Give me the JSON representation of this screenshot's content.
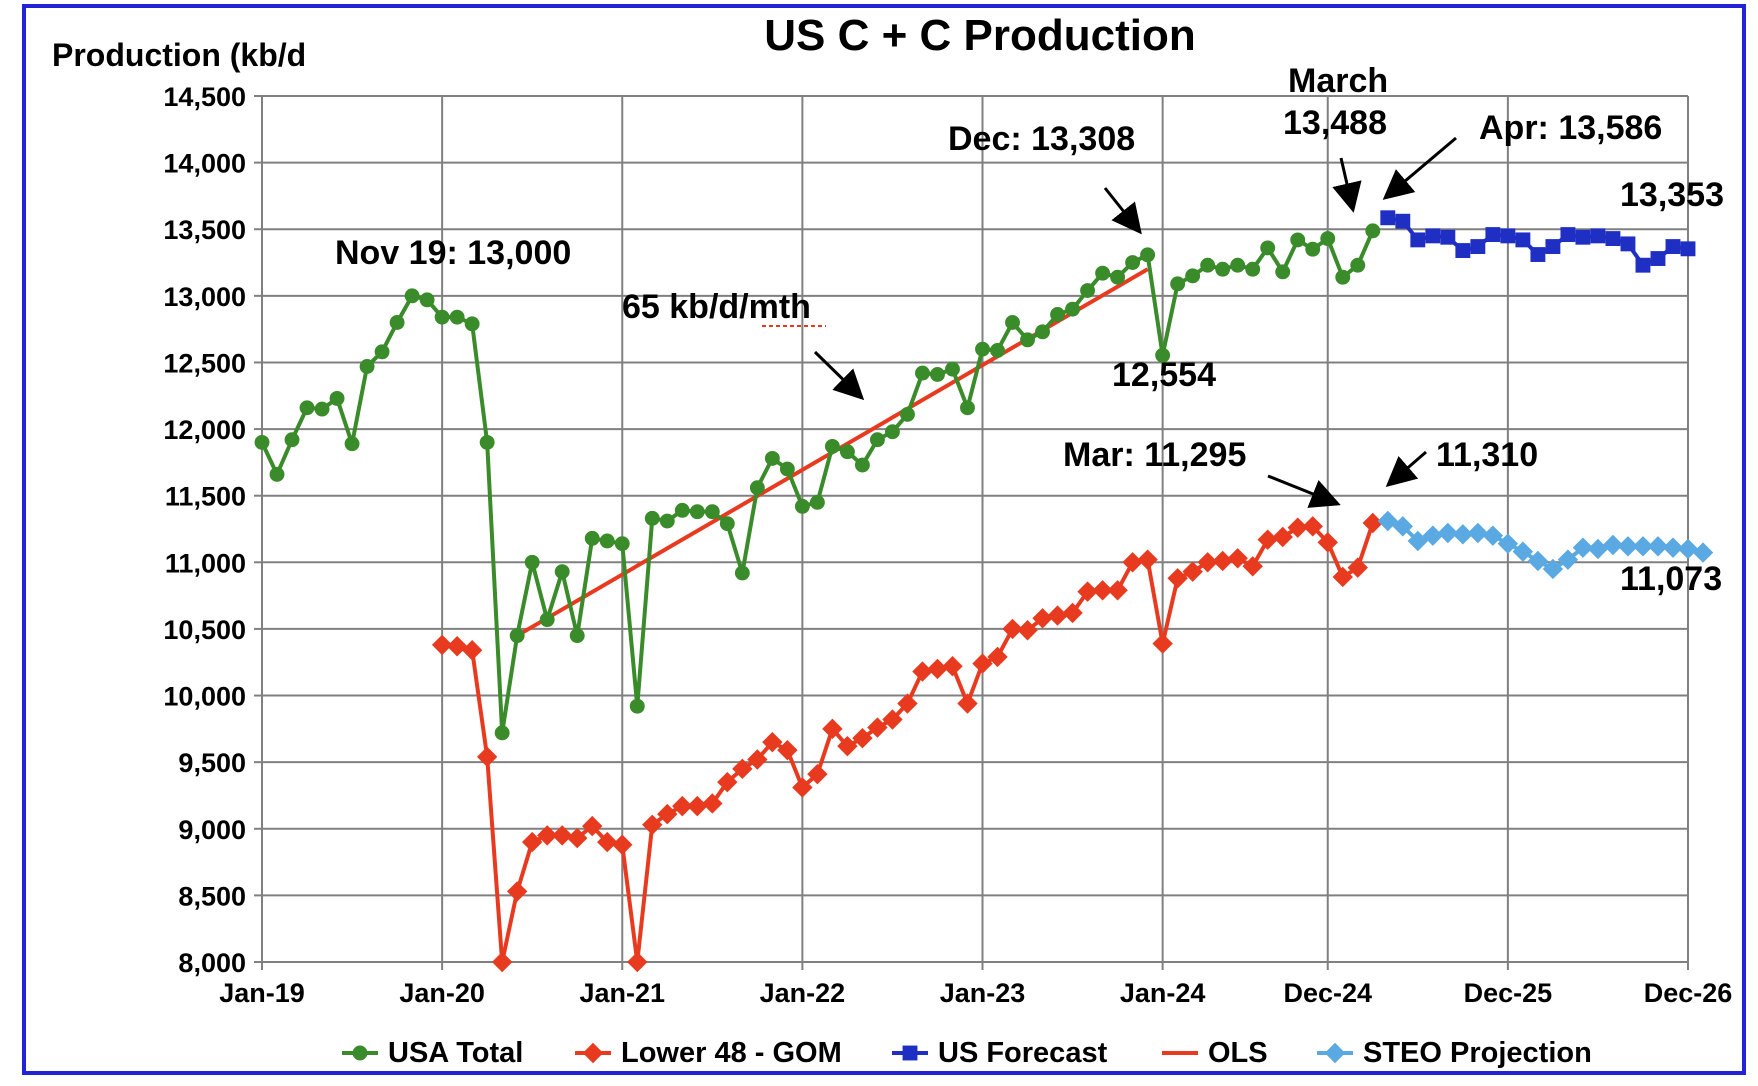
{
  "chart_data": {
    "type": "line",
    "title": "US C + C Production",
    "ylabel": "Production (kb/d",
    "ylim": [
      8000,
      14500
    ],
    "yticks": [
      8000,
      8500,
      9000,
      9500,
      10000,
      10500,
      11000,
      11500,
      12000,
      12500,
      13000,
      13500,
      14000,
      14500
    ],
    "ytick_labels": [
      "8,000",
      "8,500",
      "9,000",
      "9,500",
      "10,000",
      "10,500",
      "11,000",
      "11,500",
      "12,000",
      "12,500",
      "13,000",
      "13,500",
      "14,000",
      "14,500"
    ],
    "x_start": "Jan-19",
    "x_end": "Dec-26",
    "xticks": [
      {
        "month": 0,
        "label": "Jan-19"
      },
      {
        "month": 12,
        "label": "Jan-20"
      },
      {
        "month": 24,
        "label": "Jan-21"
      },
      {
        "month": 36,
        "label": "Jan-22"
      },
      {
        "month": 48,
        "label": "Jan-23"
      },
      {
        "month": 60,
        "label": "Jan-24"
      },
      {
        "month": 71,
        "label": "Dec-24"
      },
      {
        "month": 83,
        "label": "Dec-25"
      },
      {
        "month": 95,
        "label": "Dec-26"
      }
    ],
    "grid": true,
    "legend_position": "bottom",
    "series": [
      {
        "name": "USA Total",
        "color": "#3a8b2a",
        "marker": "circle",
        "x_start_month": 0,
        "values": [
          11900,
          11660,
          11920,
          12160,
          12150,
          12230,
          11890,
          12470,
          12580,
          12800,
          13000,
          12970,
          12840,
          12840,
          12790,
          11900,
          9720,
          10450,
          11000,
          10570,
          10930,
          10450,
          11180,
          11160,
          11140,
          9920,
          11330,
          11310,
          11390,
          11380,
          11380,
          11290,
          10920,
          11560,
          11780,
          11700,
          11420,
          11450,
          11870,
          11830,
          11730,
          11920,
          11980,
          12110,
          12420,
          12410,
          12450,
          12160,
          12600,
          12590,
          12800,
          12670,
          12730,
          12860,
          12900,
          13040,
          13170,
          13140,
          13250,
          13308,
          12554,
          13090,
          13150,
          13230,
          13200,
          13230,
          13200,
          13360,
          13180,
          13420,
          13350,
          13430,
          13140,
          13230,
          13488
        ]
      },
      {
        "name": "Lower 48 - GOM",
        "color": "#e83a1f",
        "marker": "diamond",
        "x_start_month": 12,
        "values": [
          10380,
          10370,
          10340,
          9540,
          7950,
          8530,
          8900,
          8950,
          8950,
          8930,
          9020,
          8900,
          8880,
          7970,
          9030,
          9110,
          9170,
          9170,
          9190,
          9350,
          9450,
          9520,
          9650,
          9590,
          9310,
          9410,
          9750,
          9620,
          9680,
          9760,
          9820,
          9940,
          10180,
          10200,
          10220,
          9940,
          10240,
          10290,
          10500,
          10490,
          10580,
          10600,
          10620,
          10780,
          10790,
          10790,
          11000,
          11020,
          10390,
          10880,
          10930,
          11000,
          11010,
          11030,
          10970,
          11170,
          11190,
          11260,
          11270,
          11150,
          10890,
          10960,
          11295
        ]
      },
      {
        "name": "US Forecast",
        "color": "#1f2fc4",
        "marker": "square",
        "x_start_month": 75,
        "values": [
          13586,
          13560,
          13420,
          13450,
          13440,
          13340,
          13370,
          13460,
          13450,
          13420,
          13310,
          13370,
          13460,
          13440,
          13450,
          13430,
          13390,
          13230,
          13280,
          13370,
          13353
        ]
      },
      {
        "name": "OLS",
        "color": "#e83a1f",
        "marker": "none",
        "x": [
          17,
          59
        ],
        "values": [
          10450,
          13200
        ]
      },
      {
        "name": "STEO Projection",
        "color": "#5aa9e3",
        "marker": "diamond",
        "x_start_month": 75,
        "values": [
          11310,
          11270,
          11160,
          11200,
          11220,
          11210,
          11220,
          11200,
          11140,
          11080,
          11010,
          10950,
          11020,
          11110,
          11100,
          11130,
          11120,
          11120,
          11120,
          11110,
          11100,
          11073
        ]
      }
    ],
    "annotations": [
      {
        "id": "nov19",
        "text": "Nov 19: 13,000"
      },
      {
        "id": "ols",
        "text": "65 kb/d/mth"
      },
      {
        "id": "dec",
        "text": "Dec: 13,308"
      },
      {
        "id": "low",
        "text": "12,554"
      },
      {
        "id": "march1",
        "text": "March"
      },
      {
        "id": "march2",
        "text": "13,488"
      },
      {
        "id": "apr",
        "text": "Apr: 13,586"
      },
      {
        "id": "fcEnd",
        "text": "13,353"
      },
      {
        "id": "mar",
        "text": "Mar: 11,295"
      },
      {
        "id": "steoStart",
        "text": "11,310"
      },
      {
        "id": "steoEnd",
        "text": "11,073"
      }
    ]
  }
}
